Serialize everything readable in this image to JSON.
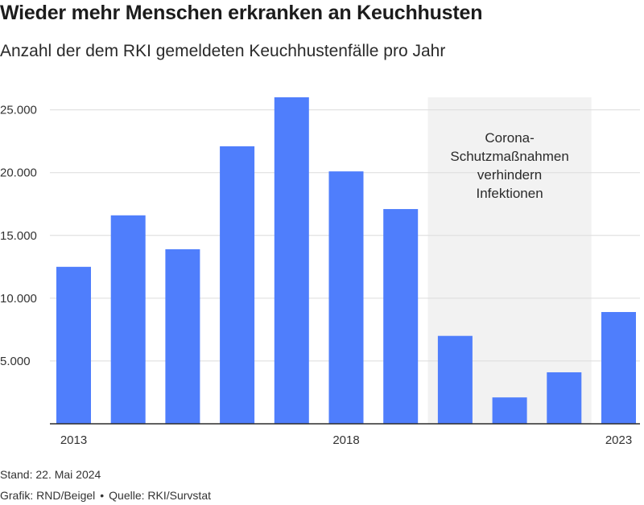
{
  "header": {
    "title": "Wieder mehr Menschen erkranken an Keuchhusten",
    "subtitle": "Anzahl der dem RKI gemeldeten Keuchhustenfälle pro Jahr"
  },
  "chart_data": {
    "type": "bar",
    "title": "Wieder mehr Menschen erkranken an Keuchhusten",
    "subtitle": "Anzahl der dem RKI gemeldeten Keuchhustenfälle pro Jahr",
    "xlabel": "",
    "ylabel": "",
    "categories": [
      "2013",
      "2014",
      "2015",
      "2016",
      "2017",
      "2018",
      "2019",
      "2020",
      "2021",
      "2022",
      "2023"
    ],
    "x_tick_labels": [
      "2013",
      "2018",
      "2023"
    ],
    "values": [
      12500,
      16600,
      13900,
      22100,
      26000,
      20100,
      17100,
      7000,
      2100,
      4100,
      8900
    ],
    "ylim": [
      0,
      26000
    ],
    "y_ticks": [
      5000,
      10000,
      15000,
      20000,
      25000
    ],
    "y_tick_labels": [
      "5.000",
      "10.000",
      "15.000",
      "20.000",
      "25.000"
    ],
    "grid": "horizontal",
    "bar_color": "#4f7efc",
    "highlight": {
      "from": "2020",
      "to": "2022",
      "color": "#f2f2f2",
      "label_lines": [
        "Corona-",
        "Schutzmaßnahmen",
        "verhindern",
        "Infektionen"
      ]
    }
  },
  "footer": {
    "stand": "Stand: 22. Mai 2024",
    "grafik": "Grafik: RND/Beigel",
    "separator": "•",
    "quelle": "Quelle: RKI/Survstat"
  }
}
